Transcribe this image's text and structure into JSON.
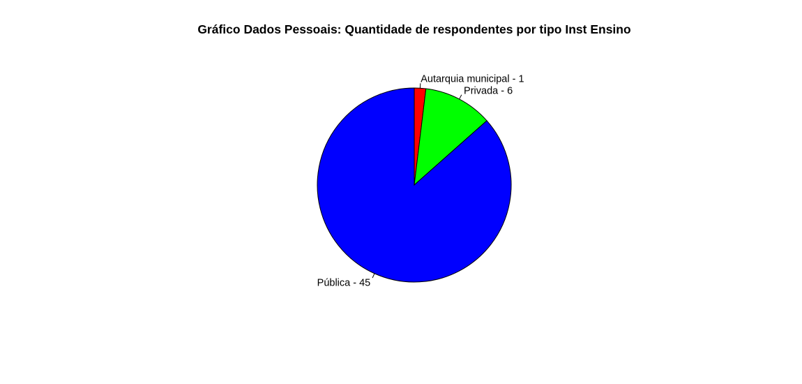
{
  "chart_data": {
    "type": "pie",
    "title": "Gráfico Dados Pessoais: Quantidade de respondentes por tipo Inst Ensino",
    "start_angle_deg": 90,
    "direction": "clockwise",
    "slices": [
      {
        "label": "Autarquia municipal - 1",
        "value": 1,
        "color": "#FF0000"
      },
      {
        "label": "Privada - 6",
        "value": 6,
        "color": "#00FF00"
      },
      {
        "label": "Pública - 45",
        "value": 45,
        "color": "#0000FF"
      }
    ]
  }
}
